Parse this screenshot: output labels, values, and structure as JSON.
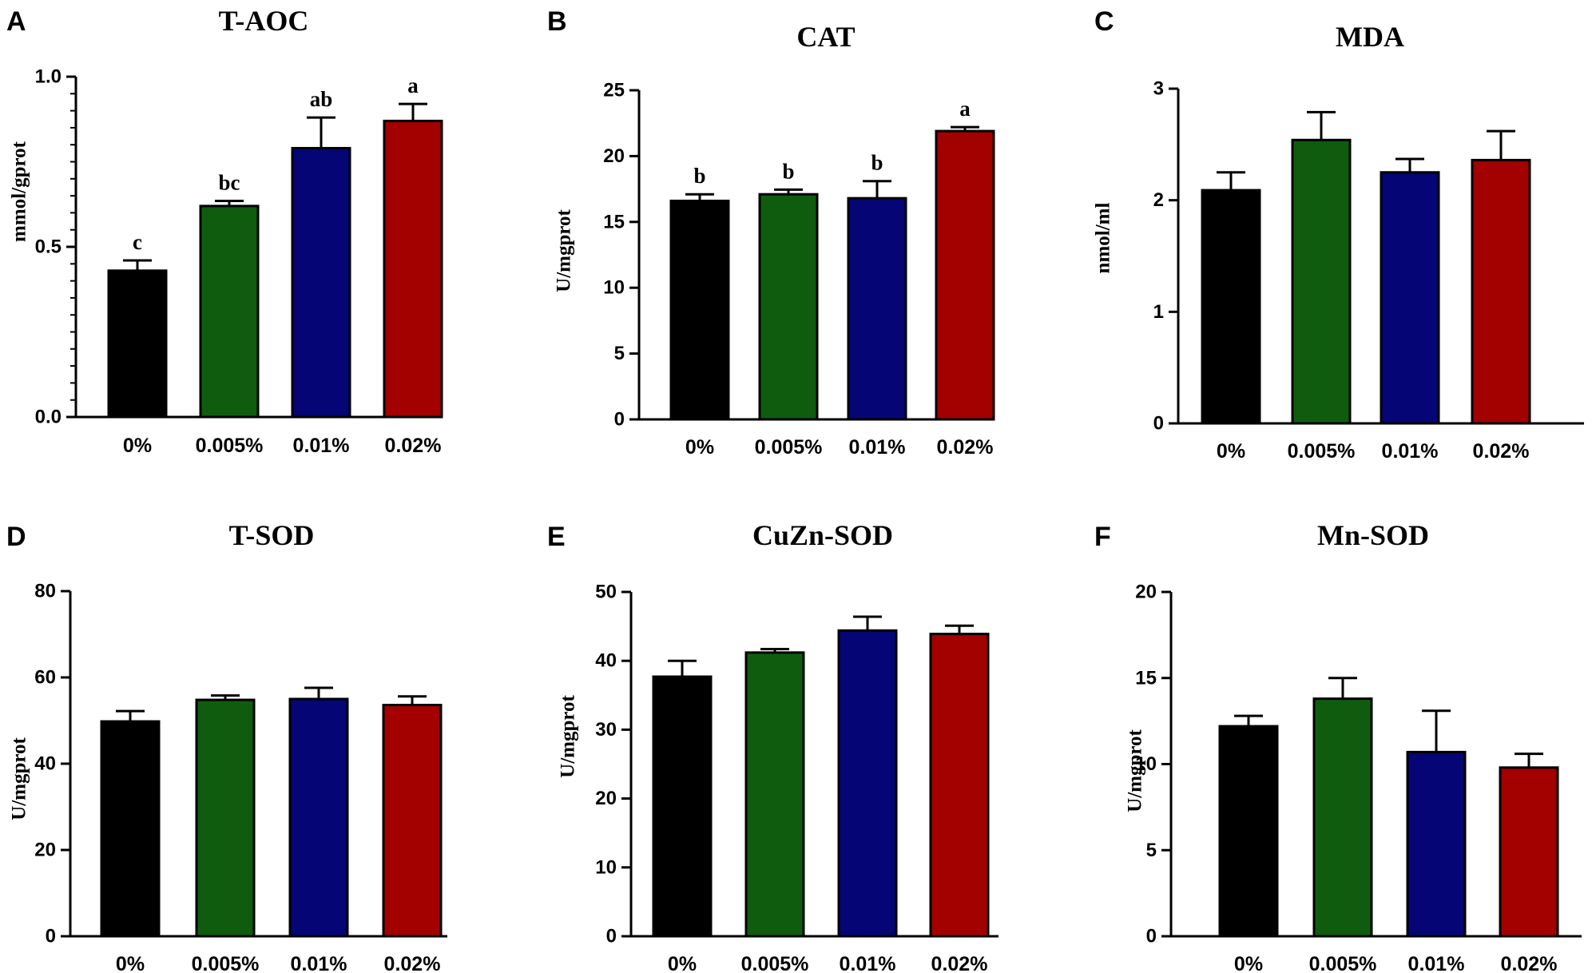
{
  "figure": {
    "background": "#ffffff"
  },
  "chart_data": [
    {
      "panel": "A",
      "type": "bar",
      "title": "T-AOC",
      "ylabel": "mmol/gprot",
      "xlabel": "",
      "categories": [
        "0%",
        "0.005%",
        "0.01%",
        "0.02%"
      ],
      "values": [
        0.43,
        0.62,
        0.79,
        0.87
      ],
      "errors": [
        0.03,
        0.015,
        0.09,
        0.05
      ],
      "significance": [
        "c",
        "bc",
        "ab",
        "a"
      ],
      "ylim": [
        0,
        1.0
      ],
      "yticks": [
        0,
        0.5,
        1.0
      ],
      "ytick_labels": [
        "0.0",
        "0.5",
        "1.0"
      ],
      "yminor_per_major": 9,
      "colors": [
        "#000000",
        "#0f5c0f",
        "#050575",
        "#a30000"
      ],
      "grid": false
    },
    {
      "panel": "B",
      "type": "bar",
      "title": "CAT",
      "ylabel": "U/mgprot",
      "xlabel": "",
      "categories": [
        "0%",
        "0.005%",
        "0.01%",
        "0.02%"
      ],
      "values": [
        16.6,
        17.1,
        16.8,
        21.9
      ],
      "errors": [
        0.5,
        0.35,
        1.3,
        0.3
      ],
      "significance": [
        "b",
        "b",
        "b",
        "a"
      ],
      "ylim": [
        0,
        25
      ],
      "yticks": [
        0,
        5,
        10,
        15,
        20,
        25
      ],
      "ytick_labels": [
        "0",
        "5",
        "10",
        "15",
        "20",
        "25"
      ],
      "yminor_per_major": 0,
      "colors": [
        "#000000",
        "#0f5c0f",
        "#050575",
        "#a30000"
      ],
      "grid": false
    },
    {
      "panel": "C",
      "type": "bar",
      "title": "MDA",
      "ylabel": "nmol/ml",
      "xlabel": "",
      "categories": [
        "0%",
        "0.005%",
        "0.01%",
        "0.02%"
      ],
      "values": [
        2.09,
        2.54,
        2.25,
        2.36
      ],
      "errors": [
        0.16,
        0.25,
        0.12,
        0.26
      ],
      "significance": [
        "",
        "",
        "",
        ""
      ],
      "ylim": [
        0,
        3
      ],
      "yticks": [
        0,
        1,
        2,
        3
      ],
      "ytick_labels": [
        "0",
        "1",
        "2",
        "3"
      ],
      "yminor_per_major": 0,
      "colors": [
        "#000000",
        "#0f5c0f",
        "#050575",
        "#a30000"
      ],
      "grid": false
    },
    {
      "panel": "D",
      "type": "bar",
      "title": "T-SOD",
      "ylabel": "U/mgprot",
      "xlabel": "",
      "categories": [
        "0%",
        "0.005%",
        "0.01%",
        "0.02%"
      ],
      "values": [
        49.8,
        54.8,
        55.0,
        53.6
      ],
      "errors": [
        2.4,
        1.0,
        2.6,
        2.0
      ],
      "significance": [
        "",
        "",
        "",
        ""
      ],
      "ylim": [
        0,
        80
      ],
      "yticks": [
        0,
        20,
        40,
        60,
        80
      ],
      "ytick_labels": [
        "0",
        "20",
        "40",
        "60",
        "80"
      ],
      "yminor_per_major": 0,
      "colors": [
        "#000000",
        "#0f5c0f",
        "#050575",
        "#a30000"
      ],
      "grid": false
    },
    {
      "panel": "E",
      "type": "bar",
      "title": "CuZn-SOD",
      "ylabel": "U/mgprot",
      "xlabel": "",
      "categories": [
        "0%",
        "0.005%",
        "0.01%",
        "0.02%"
      ],
      "values": [
        37.7,
        41.2,
        44.4,
        43.9
      ],
      "errors": [
        2.3,
        0.5,
        2.0,
        1.2
      ],
      "significance": [
        "",
        "",
        "",
        ""
      ],
      "ylim": [
        0,
        50
      ],
      "yticks": [
        0,
        10,
        20,
        30,
        40,
        50
      ],
      "ytick_labels": [
        "0",
        "10",
        "20",
        "30",
        "40",
        "50"
      ],
      "yminor_per_major": 0,
      "colors": [
        "#000000",
        "#0f5c0f",
        "#050575",
        "#a30000"
      ],
      "grid": false
    },
    {
      "panel": "F",
      "type": "bar",
      "title": "Mn-SOD",
      "ylabel": "U/mgprot",
      "xlabel": "",
      "categories": [
        "0%",
        "0.005%",
        "0.01%",
        "0.02%"
      ],
      "values": [
        12.2,
        13.8,
        10.7,
        9.8
      ],
      "errors": [
        0.6,
        1.2,
        2.4,
        0.8
      ],
      "significance": [
        "",
        "",
        "",
        ""
      ],
      "ylim": [
        0,
        20
      ],
      "yticks": [
        0,
        5,
        10,
        15,
        20
      ],
      "ytick_labels": [
        "0",
        "5",
        "10",
        "15",
        "20"
      ],
      "yminor_per_major": 0,
      "colors": [
        "#000000",
        "#0f5c0f",
        "#050575",
        "#a30000"
      ],
      "grid": false
    }
  ]
}
